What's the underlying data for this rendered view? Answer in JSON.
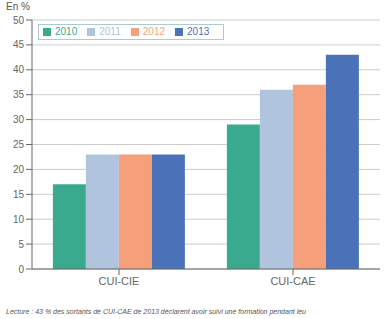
{
  "chart_data": {
    "type": "bar",
    "categories": [
      "CUI-CIE",
      "CUI-CAE"
    ],
    "series": [
      {
        "name": "2010",
        "color": "#3aaa8e",
        "values": [
          17,
          29
        ]
      },
      {
        "name": "2011",
        "color": "#b0c4de",
        "values": [
          23,
          36
        ]
      },
      {
        "name": "2012",
        "color": "#f5a07a",
        "values": [
          23,
          37
        ]
      },
      {
        "name": "2013",
        "color": "#4a72b8",
        "values": [
          23,
          43
        ]
      }
    ],
    "ylabel": "En %",
    "ylim": [
      0,
      50
    ],
    "yticks": [
      0,
      5,
      10,
      15,
      20,
      25,
      30,
      35,
      40,
      45,
      50
    ],
    "grid": true,
    "legend": "upper left",
    "footnote": "Lecture : 43 % des sortants de CUI-CAE de 2013 déclarent avoir suivi une formation pendant leu"
  }
}
